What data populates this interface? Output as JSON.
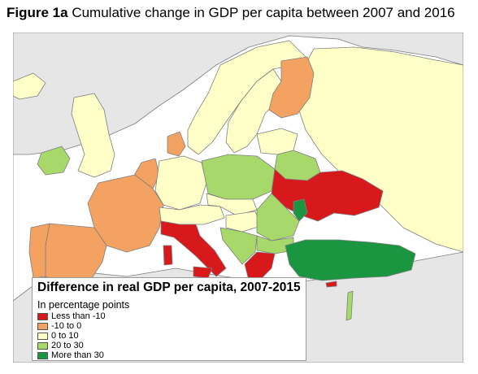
{
  "figure": {
    "label": "Figure 1a",
    "title": "Cumulative change in GDP per capita between 2007 and 2016"
  },
  "legend": {
    "title": "Difference in real GDP per capita, 2007-2015",
    "subtitle": "In percentage points",
    "items": [
      {
        "label": "Less than -10",
        "color": "#d7191c"
      },
      {
        "label": "-10 to 0",
        "color": "#f4a261"
      },
      {
        "label": "0 to 10",
        "color": "#ffffc8"
      },
      {
        "label": "20 to 30",
        "color": "#a6d96a"
      },
      {
        "label": "More than 30",
        "color": "#1a9641"
      }
    ]
  },
  "colors": {
    "sea": "#ffffff",
    "non_data": "#e6e6e6",
    "border": "#7f7f7f"
  }
}
